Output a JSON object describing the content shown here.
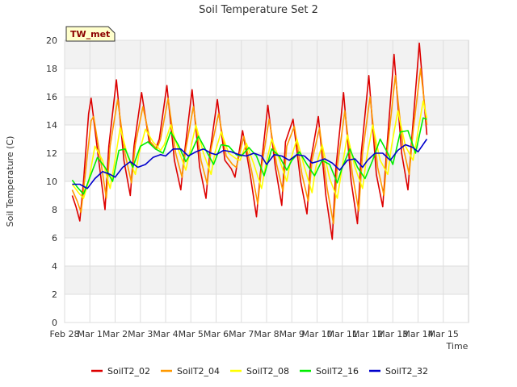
{
  "chart_data": {
    "type": "line",
    "title": "Soil Temperature Set 2",
    "xlabel": "Time",
    "ylabel": "Soil Temperature (C)",
    "badge": "TW_met",
    "ylim": [
      0,
      20
    ],
    "xlim": [
      0,
      16
    ],
    "yticks": [
      0,
      2,
      4,
      6,
      8,
      10,
      12,
      14,
      16,
      18,
      20
    ],
    "xticks": [
      {
        "pos": 0,
        "label": "Feb 28"
      },
      {
        "pos": 1,
        "label": "Mar 1"
      },
      {
        "pos": 2,
        "label": "Mar 2"
      },
      {
        "pos": 3,
        "label": "Mar 3"
      },
      {
        "pos": 4,
        "label": "Mar 4"
      },
      {
        "pos": 5,
        "label": "Mar 5"
      },
      {
        "pos": 6,
        "label": "Mar 6"
      },
      {
        "pos": 7,
        "label": "Mar 7"
      },
      {
        "pos": 8,
        "label": "Mar 8"
      },
      {
        "pos": 9,
        "label": "Mar 9"
      },
      {
        "pos": 10,
        "label": "Mar 10"
      },
      {
        "pos": 11,
        "label": "Mar 11"
      },
      {
        "pos": 12,
        "label": "Mar 12"
      },
      {
        "pos": 13,
        "label": "Mar 13"
      },
      {
        "pos": 14,
        "label": "Mar 14"
      },
      {
        "pos": 15,
        "label": "Mar 15"
      }
    ],
    "grid": true,
    "legend_position": "bottom",
    "series": [
      {
        "name": "SoilT2_02",
        "color": "#dd0000",
        "x": [
          0.3,
          0.45,
          0.6,
          0.75,
          0.95,
          1.05,
          1.35,
          1.6,
          1.75,
          2.05,
          2.35,
          2.6,
          2.75,
          3.05,
          3.35,
          3.6,
          3.75,
          4.05,
          4.35,
          4.6,
          4.75,
          5.05,
          5.35,
          5.6,
          5.75,
          6.05,
          6.35,
          6.6,
          6.75,
          7.05,
          7.35,
          7.6,
          7.75,
          8.05,
          8.35,
          8.6,
          8.75,
          9.05,
          9.35,
          9.6,
          9.75,
          10.05,
          10.35,
          10.6,
          10.75,
          11.05,
          11.35,
          11.6,
          11.75,
          12.05,
          12.35,
          12.6,
          12.75,
          13.05,
          13.35,
          13.6,
          13.75,
          14.05,
          14.35
        ],
        "values": [
          9.0,
          8.2,
          7.2,
          10.0,
          14.8,
          15.9,
          11.5,
          8.0,
          12.5,
          17.2,
          11.5,
          9.0,
          12.5,
          16.3,
          12.8,
          12.3,
          13.0,
          16.8,
          11.5,
          9.4,
          12.0,
          16.5,
          11.0,
          8.8,
          12.0,
          15.8,
          11.5,
          10.9,
          10.3,
          13.6,
          10.5,
          7.5,
          10.5,
          15.4,
          11.0,
          8.3,
          12.8,
          14.4,
          10.0,
          7.7,
          11.5,
          14.6,
          9.0,
          5.9,
          11.0,
          16.3,
          10.0,
          7.0,
          12.0,
          17.5,
          10.5,
          8.2,
          12.0,
          19.0,
          12.0,
          9.4,
          13.0,
          19.8,
          13.3
        ]
      },
      {
        "name": "SoilT2_04",
        "color": "#ff9900",
        "x": [
          0.3,
          0.5,
          0.65,
          0.8,
          1.05,
          1.15,
          1.4,
          1.65,
          1.8,
          2.1,
          2.4,
          2.65,
          2.8,
          3.1,
          3.4,
          3.65,
          3.8,
          4.1,
          4.4,
          4.65,
          4.8,
          5.1,
          5.4,
          5.65,
          5.8,
          6.1,
          6.4,
          6.65,
          6.8,
          7.1,
          7.4,
          7.65,
          7.8,
          8.1,
          8.4,
          8.65,
          8.8,
          9.1,
          9.4,
          9.65,
          9.8,
          10.1,
          10.4,
          10.65,
          10.8,
          11.1,
          11.4,
          11.65,
          11.8,
          12.1,
          12.4,
          12.65,
          12.8,
          13.1,
          13.4,
          13.65,
          13.8,
          14.1,
          14.35
        ],
        "values": [
          9.4,
          8.6,
          7.8,
          10.2,
          14.3,
          14.6,
          11.8,
          8.8,
          12.5,
          15.8,
          11.9,
          9.9,
          12.6,
          15.3,
          12.8,
          12.3,
          13.0,
          15.9,
          12.0,
          10.3,
          12.3,
          15.3,
          11.5,
          9.8,
          12.3,
          14.8,
          11.8,
          11.2,
          11.0,
          13.2,
          10.8,
          8.4,
          11.0,
          14.4,
          11.2,
          9.3,
          12.5,
          13.9,
          10.5,
          8.6,
          11.5,
          13.8,
          9.5,
          7.0,
          11.0,
          15.0,
          10.5,
          7.9,
          12.0,
          16.0,
          11.0,
          9.0,
          12.5,
          17.5,
          12.5,
          10.5,
          13.5,
          18.0,
          14.0
        ]
      },
      {
        "name": "SoilT2_08",
        "color": "#ffff00",
        "x": [
          0.3,
          0.55,
          0.75,
          0.95,
          1.2,
          1.5,
          1.8,
          1.95,
          2.2,
          2.5,
          2.8,
          2.95,
          3.2,
          3.5,
          3.8,
          3.95,
          4.2,
          4.5,
          4.8,
          4.95,
          5.2,
          5.5,
          5.8,
          5.95,
          6.2,
          6.5,
          6.8,
          6.95,
          7.2,
          7.5,
          7.8,
          7.95,
          8.2,
          8.5,
          8.8,
          8.95,
          9.2,
          9.5,
          9.8,
          9.95,
          10.2,
          10.5,
          10.8,
          10.95,
          11.2,
          11.5,
          11.8,
          11.95,
          12.2,
          12.5,
          12.8,
          12.95,
          13.2,
          13.5,
          13.8,
          13.95,
          14.2,
          14.35
        ],
        "values": [
          9.8,
          9.2,
          8.8,
          10.0,
          12.5,
          11.5,
          9.5,
          11.0,
          13.8,
          11.8,
          10.5,
          12.0,
          13.7,
          12.8,
          12.2,
          12.6,
          14.0,
          12.3,
          10.8,
          12.0,
          14.0,
          12.0,
          10.5,
          12.0,
          13.5,
          12.0,
          11.6,
          11.5,
          12.7,
          11.2,
          9.5,
          11.0,
          13.0,
          11.6,
          10.0,
          11.5,
          13.0,
          11.0,
          9.2,
          11.0,
          12.6,
          10.2,
          8.8,
          10.5,
          13.3,
          11.0,
          9.5,
          11.5,
          14.0,
          11.5,
          10.5,
          12.5,
          15.0,
          12.5,
          11.5,
          13.0,
          15.7,
          14.5
        ]
      },
      {
        "name": "SoilT2_16",
        "color": "#00ee00",
        "x": [
          0.3,
          0.5,
          0.75,
          1.0,
          1.3,
          1.6,
          1.9,
          2.15,
          2.4,
          2.7,
          3.0,
          3.3,
          3.6,
          3.9,
          4.2,
          4.5,
          4.8,
          5.0,
          5.3,
          5.6,
          5.9,
          6.2,
          6.5,
          6.8,
          7.0,
          7.3,
          7.6,
          7.9,
          8.2,
          8.5,
          8.8,
          9.0,
          9.3,
          9.6,
          9.9,
          10.2,
          10.5,
          10.8,
          11.0,
          11.3,
          11.6,
          11.9,
          12.2,
          12.5,
          12.8,
          13.0,
          13.3,
          13.6,
          13.9,
          14.2,
          14.35
        ],
        "values": [
          10.1,
          9.6,
          9.1,
          10.3,
          11.7,
          11.0,
          10.0,
          12.2,
          12.3,
          11.0,
          12.5,
          12.8,
          12.3,
          12.0,
          13.5,
          12.6,
          11.4,
          12.0,
          13.2,
          12.2,
          11.2,
          12.6,
          12.5,
          11.9,
          11.8,
          12.4,
          11.8,
          10.4,
          12.3,
          11.8,
          10.8,
          11.5,
          12.1,
          11.2,
          10.4,
          11.5,
          11.2,
          9.9,
          11.0,
          12.3,
          11.0,
          10.2,
          11.5,
          13.0,
          12.0,
          11.2,
          13.5,
          13.6,
          12.0,
          14.5,
          14.4
        ]
      },
      {
        "name": "SoilT2_32",
        "color": "#0000cc",
        "x": [
          0.3,
          0.6,
          0.9,
          1.2,
          1.5,
          1.8,
          2.0,
          2.3,
          2.6,
          2.9,
          3.2,
          3.5,
          3.8,
          4.0,
          4.3,
          4.6,
          4.9,
          5.2,
          5.5,
          5.8,
          6.0,
          6.3,
          6.6,
          6.9,
          7.2,
          7.5,
          7.8,
          8.0,
          8.3,
          8.6,
          8.9,
          9.2,
          9.5,
          9.8,
          10.0,
          10.3,
          10.6,
          10.9,
          11.2,
          11.5,
          11.8,
          12.0,
          12.3,
          12.6,
          12.9,
          13.2,
          13.5,
          13.8,
          14.0,
          14.35
        ],
        "values": [
          9.8,
          9.8,
          9.5,
          10.2,
          10.7,
          10.5,
          10.3,
          11.0,
          11.4,
          11.0,
          11.2,
          11.7,
          11.9,
          11.8,
          12.3,
          12.3,
          11.8,
          12.1,
          12.3,
          12.0,
          11.9,
          12.2,
          12.1,
          11.9,
          11.8,
          12.0,
          11.8,
          11.2,
          11.9,
          11.8,
          11.5,
          11.9,
          11.8,
          11.3,
          11.4,
          11.6,
          11.3,
          10.8,
          11.5,
          11.6,
          11.0,
          11.5,
          12.0,
          12.0,
          11.5,
          12.2,
          12.6,
          12.4,
          12.1,
          13.0
        ]
      }
    ]
  }
}
